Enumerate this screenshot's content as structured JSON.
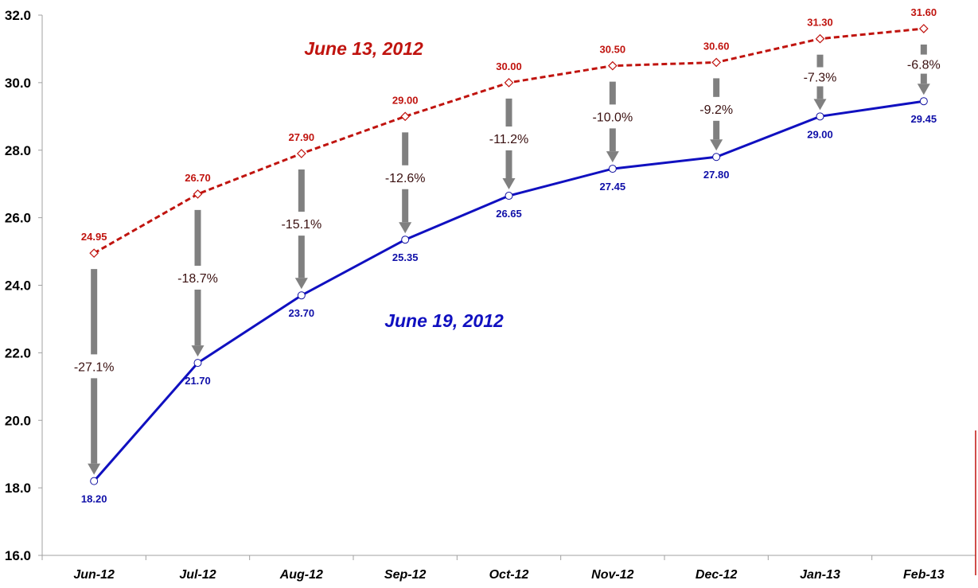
{
  "chart_data": {
    "type": "line",
    "categories": [
      "Jun-12",
      "Jul-12",
      "Aug-12",
      "Sep-12",
      "Oct-12",
      "Nov-12",
      "Dec-12",
      "Jan-13",
      "Feb-13"
    ],
    "ylim": [
      16,
      32
    ],
    "yticks": [
      "16.0",
      "18.0",
      "20.0",
      "22.0",
      "24.0",
      "26.0",
      "28.0",
      "30.0",
      "32.0"
    ],
    "grid": false,
    "series": [
      {
        "name": "June 13, 2012",
        "color": "#c0140f",
        "style": "dashed",
        "marker": "diamond",
        "values": [
          24.95,
          26.7,
          27.9,
          29.0,
          30.0,
          30.5,
          30.6,
          31.3,
          31.6
        ],
        "labels": [
          "24.95",
          "26.70",
          "27.90",
          "29.00",
          "30.00",
          "30.50",
          "30.60",
          "31.30",
          "31.60"
        ]
      },
      {
        "name": "June 19, 2012",
        "color": "#1010c0",
        "style": "solid",
        "marker": "circle",
        "values": [
          18.2,
          21.7,
          23.7,
          25.35,
          26.65,
          27.45,
          27.8,
          29.0,
          29.45
        ],
        "labels": [
          "18.20",
          "21.70",
          "23.70",
          "25.35",
          "26.65",
          "27.45",
          "27.80",
          "29.00",
          "29.45"
        ]
      }
    ],
    "annotations": {
      "percent_change": [
        "-27.1%",
        "-18.7%",
        "-15.1%",
        "-12.6%",
        "-11.2%",
        "-10.0%",
        "-9.2%",
        "-7.3%",
        "-6.8%"
      ],
      "arrow_color": "#808080"
    }
  }
}
